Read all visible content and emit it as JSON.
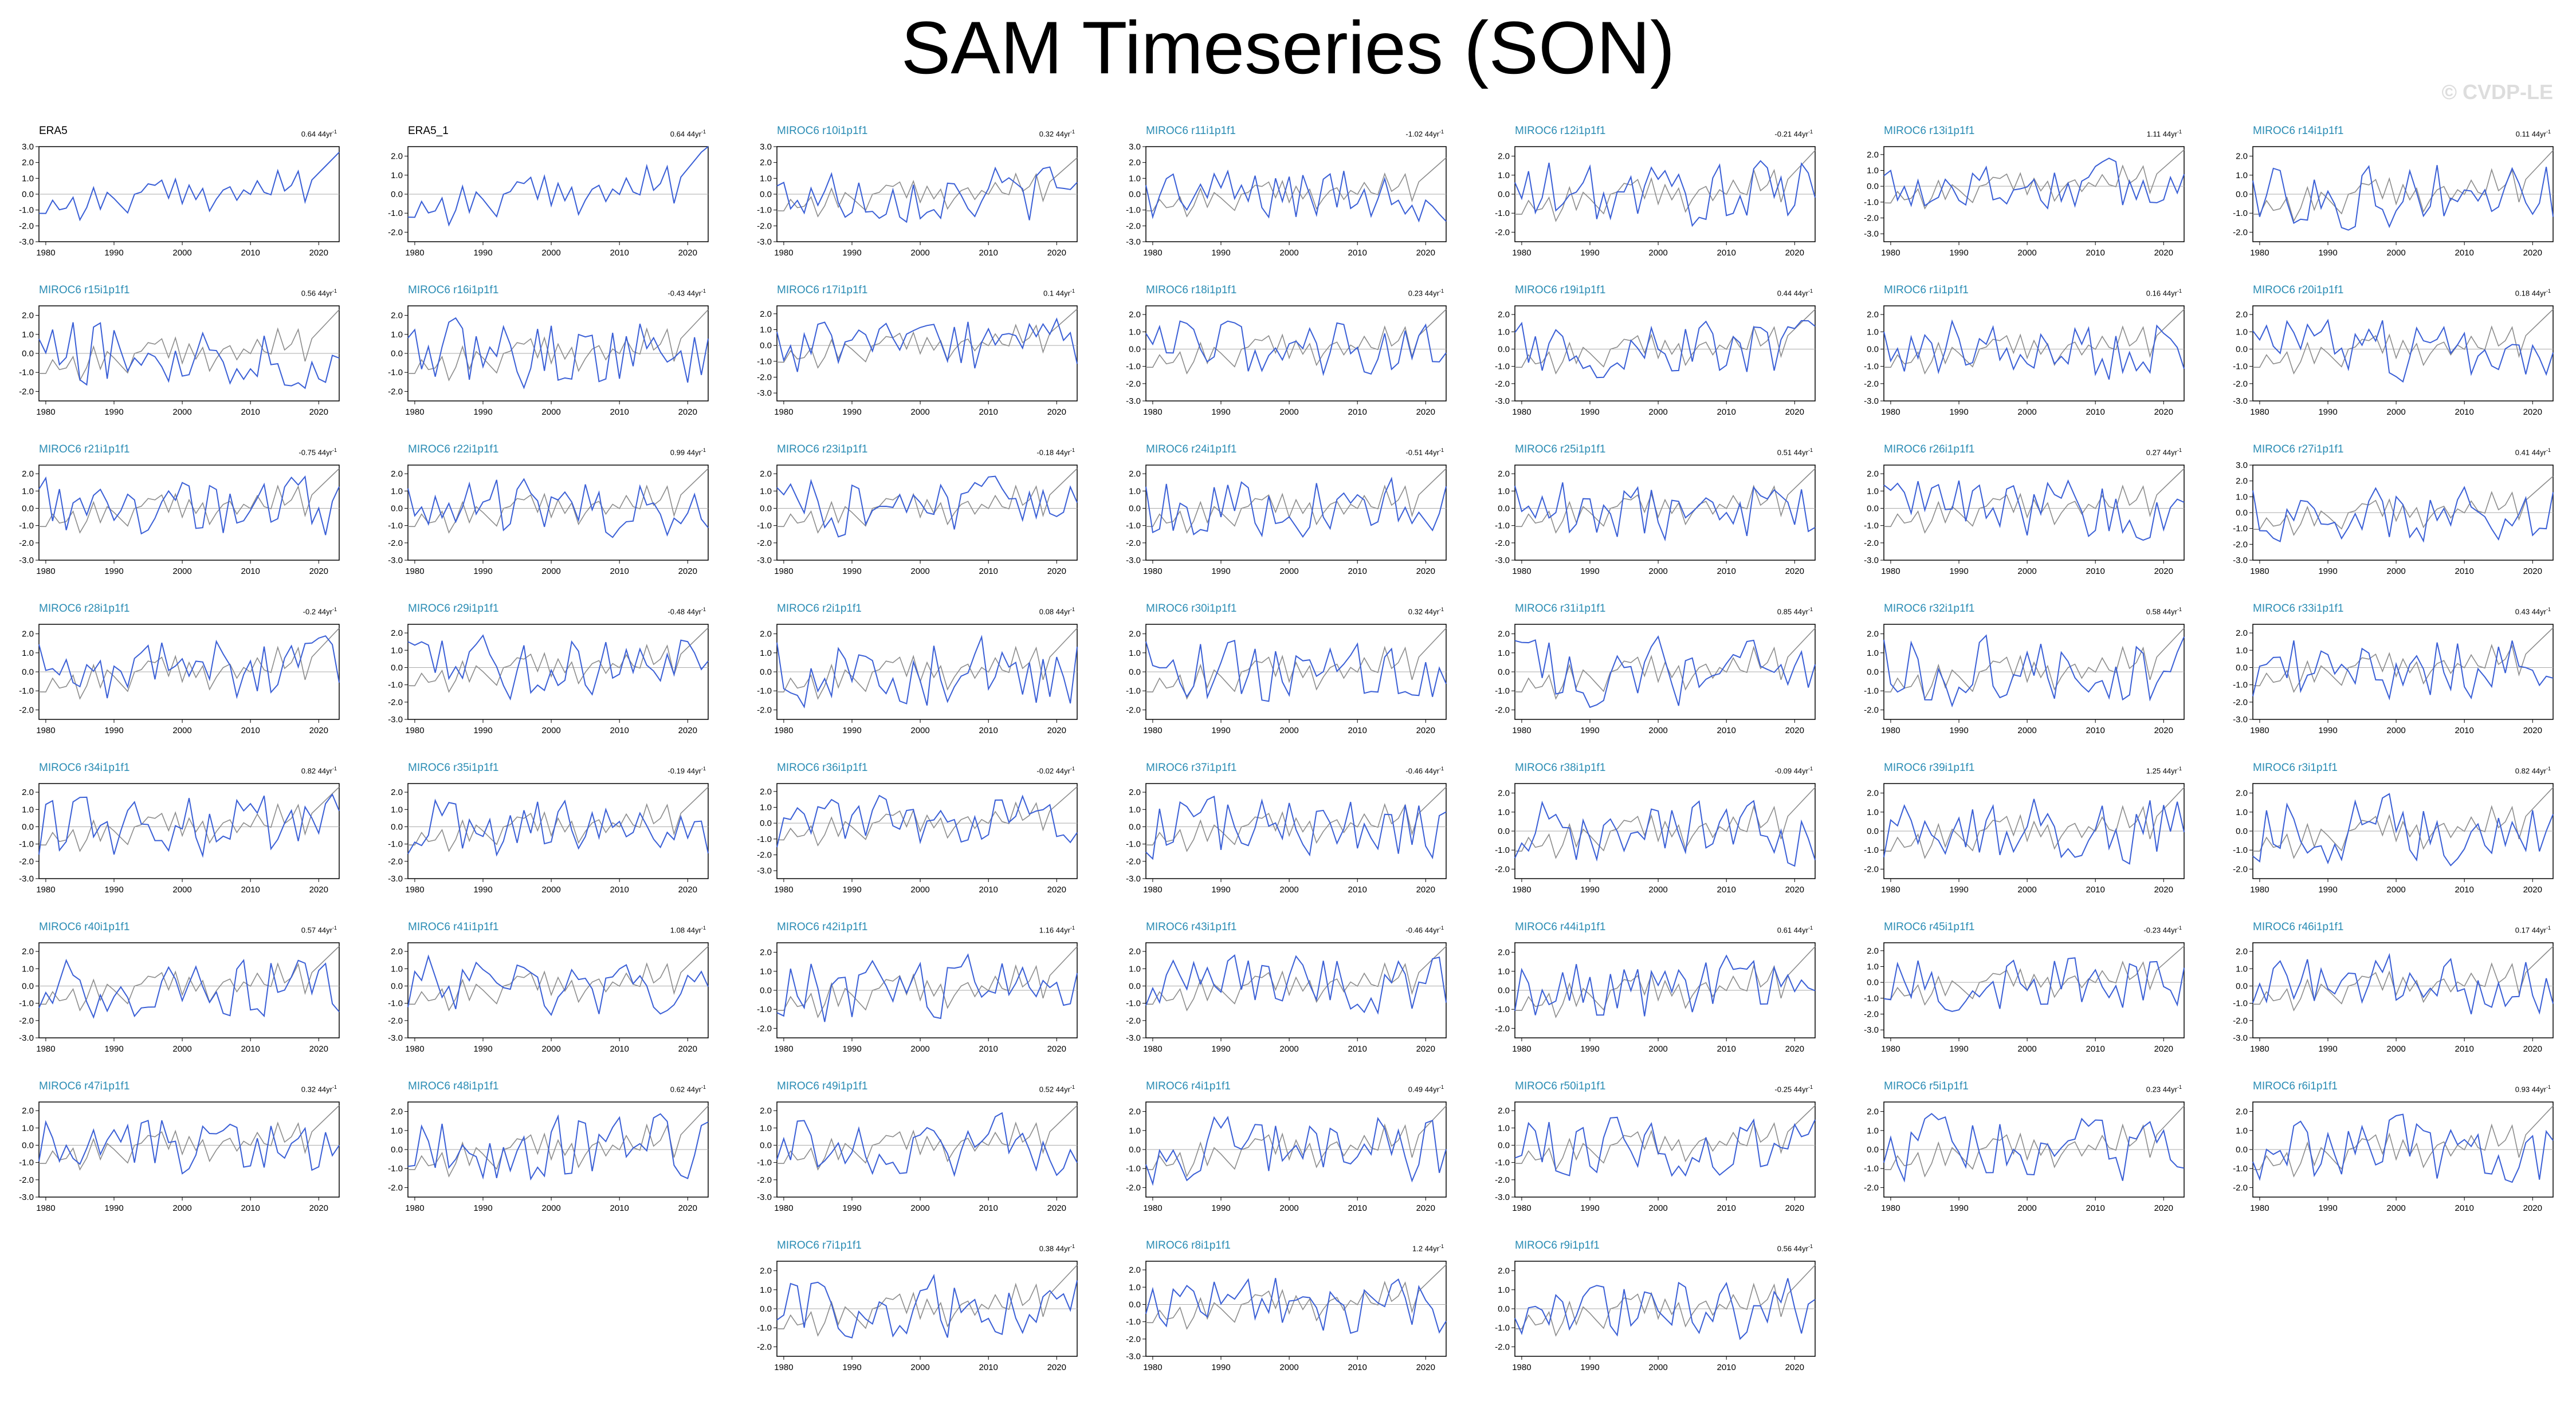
{
  "title": "SAM Timeseries (SON)",
  "watermark": "© CVDP-LE",
  "colors": {
    "obs_label": "#000000",
    "model_label": "#2a8cb4",
    "series": "#3a5fd6",
    "reference": "#8c8c8c",
    "zero_line": "#aaaaaa"
  },
  "chart_data": {
    "type": "line",
    "x_range": [
      1979,
      2023
    ],
    "x_ticks": [
      "1980",
      "1990",
      "2000",
      "2010",
      "2020"
    ],
    "trend_unit": "44yr",
    "reference_series": "ERA5",
    "panels": [
      {
        "label": "ERA5",
        "trend": "0.64",
        "ylim": [
          -3,
          3
        ]
      },
      {
        "label": "ERA5_1",
        "trend": "0.64",
        "ylim": [
          -2.5,
          2.5
        ]
      },
      {
        "label": "MIROC6 r10i1p1f1",
        "trend": "0.32",
        "ylim": [
          -3,
          3
        ]
      },
      {
        "label": "MIROC6 r11i1p1f1",
        "trend": "-1.02",
        "ylim": [
          -3,
          3
        ]
      },
      {
        "label": "MIROC6 r12i1p1f1",
        "trend": "-0.21",
        "ylim": [
          -2.5,
          2.5
        ]
      },
      {
        "label": "MIROC6 r13i1p1f1",
        "trend": "1.11",
        "ylim": [
          -3.5,
          2.5
        ]
      },
      {
        "label": "MIROC6 r14i1p1f1",
        "trend": "0.11",
        "ylim": [
          -2.5,
          2.5
        ]
      },
      {
        "label": "MIROC6 r15i1p1f1",
        "trend": "0.56",
        "ylim": [
          -2.5,
          2.5
        ]
      },
      {
        "label": "MIROC6 r16i1p1f1",
        "trend": "-0.43",
        "ylim": [
          -2.5,
          2.5
        ]
      },
      {
        "label": "MIROC6 r17i1p1f1",
        "trend": "0.1",
        "ylim": [
          -3.5,
          2.5
        ]
      },
      {
        "label": "MIROC6 r18i1p1f1",
        "trend": "0.23",
        "ylim": [
          -3,
          2.5
        ]
      },
      {
        "label": "MIROC6 r19i1p1f1",
        "trend": "0.44",
        "ylim": [
          -3,
          2.5
        ]
      },
      {
        "label": "MIROC6 r1i1p1f1",
        "trend": "0.16",
        "ylim": [
          -3,
          2.5
        ]
      },
      {
        "label": "MIROC6 r20i1p1f1",
        "trend": "0.18",
        "ylim": [
          -3,
          2.5
        ]
      },
      {
        "label": "MIROC6 r21i1p1f1",
        "trend": "-0.75",
        "ylim": [
          -3,
          2.5
        ]
      },
      {
        "label": "MIROC6 r22i1p1f1",
        "trend": "0.99",
        "ylim": [
          -3,
          2.5
        ]
      },
      {
        "label": "MIROC6 r23i1p1f1",
        "trend": "-0.18",
        "ylim": [
          -3,
          2.5
        ]
      },
      {
        "label": "MIROC6 r24i1p1f1",
        "trend": "-0.51",
        "ylim": [
          -3,
          2.5
        ]
      },
      {
        "label": "MIROC6 r25i1p1f1",
        "trend": "0.51",
        "ylim": [
          -3,
          2.5
        ]
      },
      {
        "label": "MIROC6 r26i1p1f1",
        "trend": "0.27",
        "ylim": [
          -3,
          2.5
        ]
      },
      {
        "label": "MIROC6 r27i1p1f1",
        "trend": "0.41",
        "ylim": [
          -3,
          3
        ]
      },
      {
        "label": "MIROC6 r28i1p1f1",
        "trend": "-0.2",
        "ylim": [
          -2.5,
          2.5
        ]
      },
      {
        "label": "MIROC6 r29i1p1f1",
        "trend": "-0.48",
        "ylim": [
          -3,
          2.5
        ]
      },
      {
        "label": "MIROC6 r2i1p1f1",
        "trend": "0.08",
        "ylim": [
          -2.5,
          2.5
        ]
      },
      {
        "label": "MIROC6 r30i1p1f1",
        "trend": "0.32",
        "ylim": [
          -2.5,
          2.5
        ]
      },
      {
        "label": "MIROC6 r31i1p1f1",
        "trend": "0.85",
        "ylim": [
          -2.5,
          2.5
        ]
      },
      {
        "label": "MIROC6 r32i1p1f1",
        "trend": "0.58",
        "ylim": [
          -2.5,
          2.5
        ]
      },
      {
        "label": "MIROC6 r33i1p1f1",
        "trend": "0.43",
        "ylim": [
          -3,
          2.5
        ]
      },
      {
        "label": "MIROC6 r34i1p1f1",
        "trend": "0.82",
        "ylim": [
          -3,
          2.5
        ]
      },
      {
        "label": "MIROC6 r35i1p1f1",
        "trend": "-0.19",
        "ylim": [
          -3,
          2.5
        ]
      },
      {
        "label": "MIROC6 r36i1p1f1",
        "trend": "-0.02",
        "ylim": [
          -3.5,
          2.5
        ]
      },
      {
        "label": "MIROC6 r37i1p1f1",
        "trend": "-0.46",
        "ylim": [
          -3,
          2.5
        ]
      },
      {
        "label": "MIROC6 r38i1p1f1",
        "trend": "-0.09",
        "ylim": [
          -2.5,
          2.5
        ]
      },
      {
        "label": "MIROC6 r39i1p1f1",
        "trend": "1.25",
        "ylim": [
          -2.5,
          2.5
        ]
      },
      {
        "label": "MIROC6 r3i1p1f1",
        "trend": "0.82",
        "ylim": [
          -2.5,
          2.5
        ]
      },
      {
        "label": "MIROC6 r40i1p1f1",
        "trend": "0.57",
        "ylim": [
          -3,
          2.5
        ]
      },
      {
        "label": "MIROC6 r41i1p1f1",
        "trend": "1.08",
        "ylim": [
          -3,
          2.5
        ]
      },
      {
        "label": "MIROC6 r42i1p1f1",
        "trend": "1.16",
        "ylim": [
          -2.5,
          2.5
        ]
      },
      {
        "label": "MIROC6 r43i1p1f1",
        "trend": "-0.46",
        "ylim": [
          -3,
          2.5
        ]
      },
      {
        "label": "MIROC6 r44i1p1f1",
        "trend": "0.61",
        "ylim": [
          -2.5,
          2.5
        ]
      },
      {
        "label": "MIROC6 r45i1p1f1",
        "trend": "-0.23",
        "ylim": [
          -3.5,
          2.5
        ]
      },
      {
        "label": "MIROC6 r46i1p1f1",
        "trend": "0.17",
        "ylim": [
          -3,
          2.5
        ]
      },
      {
        "label": "MIROC6 r47i1p1f1",
        "trend": "0.32",
        "ylim": [
          -3,
          2.5
        ]
      },
      {
        "label": "MIROC6 r48i1p1f1",
        "trend": "0.62",
        "ylim": [
          -2.5,
          2.5
        ]
      },
      {
        "label": "MIROC6 r49i1p1f1",
        "trend": "0.52",
        "ylim": [
          -3,
          2.5
        ]
      },
      {
        "label": "MIROC6 r4i1p1f1",
        "trend": "0.49",
        "ylim": [
          -2.5,
          2.5
        ]
      },
      {
        "label": "MIROC6 r50i1p1f1",
        "trend": "-0.25",
        "ylim": [
          -3,
          2.5
        ]
      },
      {
        "label": "MIROC6 r5i1p1f1",
        "trend": "0.23",
        "ylim": [
          -2.5,
          2.5
        ]
      },
      {
        "label": "MIROC6 r6i1p1f1",
        "trend": "0.93",
        "ylim": [
          -2.5,
          2.5
        ]
      },
      {
        "label": "MIROC6 r7i1p1f1",
        "trend": "0.38",
        "ylim": [
          -2.5,
          2.5
        ]
      },
      {
        "label": "MIROC6 r8i1p1f1",
        "trend": "1.2",
        "ylim": [
          -3,
          2.5
        ]
      },
      {
        "label": "MIROC6 r9i1p1f1",
        "trend": "0.56",
        "ylim": [
          -2.5,
          2.5
        ]
      }
    ]
  }
}
